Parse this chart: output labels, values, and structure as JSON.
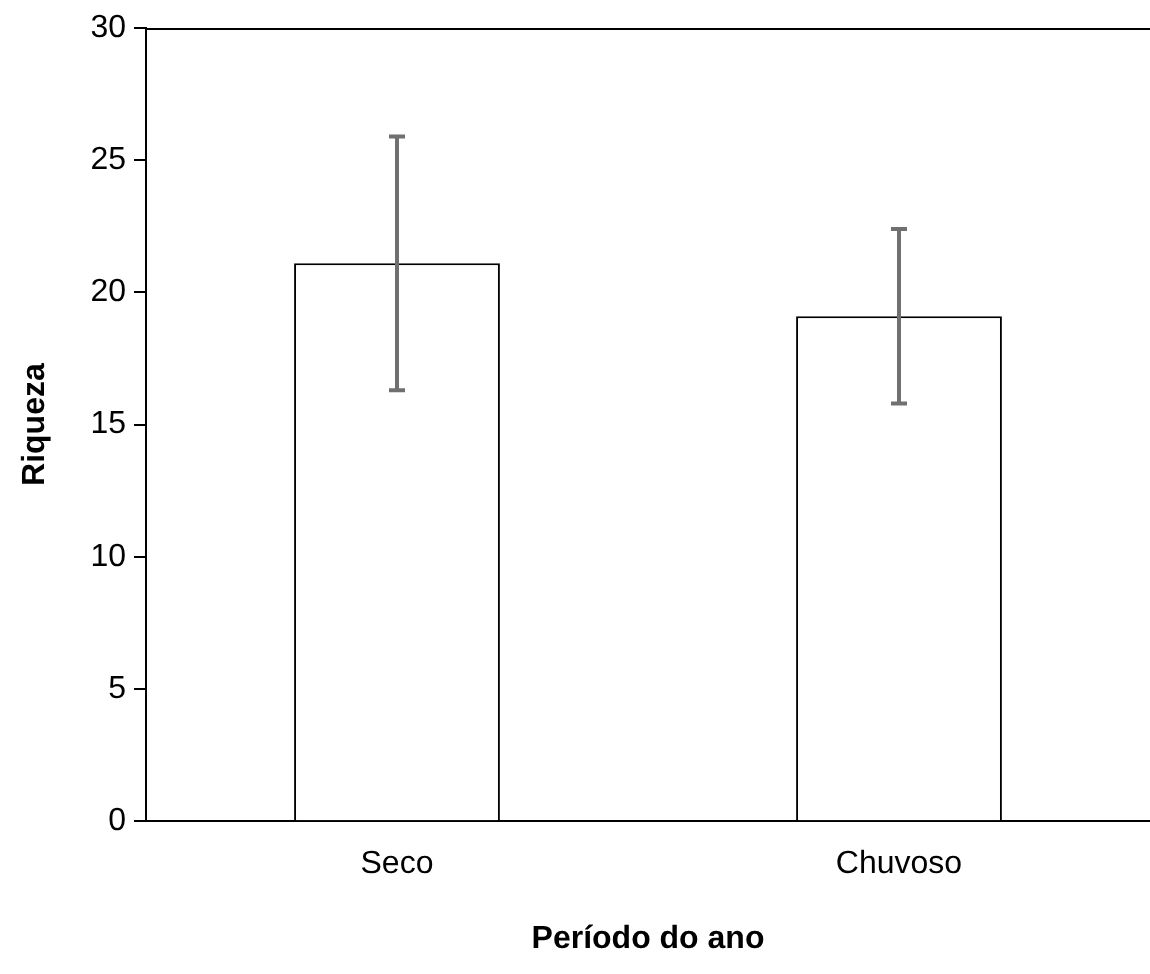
{
  "chart_data": {
    "type": "bar",
    "xlabel": "Período do ano",
    "ylabel": "Riqueza",
    "categories": [
      "Seco",
      "Chuvoso"
    ],
    "values": [
      21.1,
      19.1
    ],
    "errors": [
      4.8,
      3.3
    ],
    "color": "#ffffff",
    "ylim": [
      0,
      30
    ],
    "yticks": [
      0,
      5,
      10,
      15,
      20,
      25,
      30
    ],
    "grid": false,
    "legend": false
  }
}
